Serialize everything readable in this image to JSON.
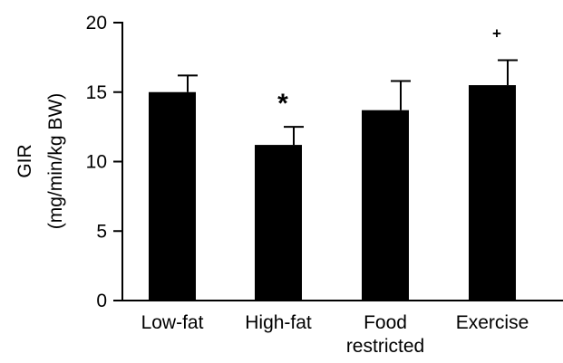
{
  "chart_data": {
    "type": "bar",
    "categories": [
      "Low-fat",
      "High-fat",
      "Food restricted",
      "Exercise"
    ],
    "category_lines": [
      [
        "Low-fat"
      ],
      [
        "High-fat"
      ],
      [
        "Food",
        "restricted"
      ],
      [
        "Exercise"
      ]
    ],
    "values": [
      15.0,
      11.2,
      13.7,
      15.5
    ],
    "errors": [
      1.2,
      1.3,
      2.1,
      1.8
    ],
    "annotations": [
      "",
      "*",
      "",
      "+"
    ],
    "ylabel_line1": "GIR",
    "ylabel_line2": "(mg/min/kg BW)",
    "xlabel": "",
    "ylim": [
      0,
      20
    ],
    "yticks": [
      0,
      5,
      10,
      15,
      20
    ],
    "bar_color": "#000000",
    "grid": false
  }
}
